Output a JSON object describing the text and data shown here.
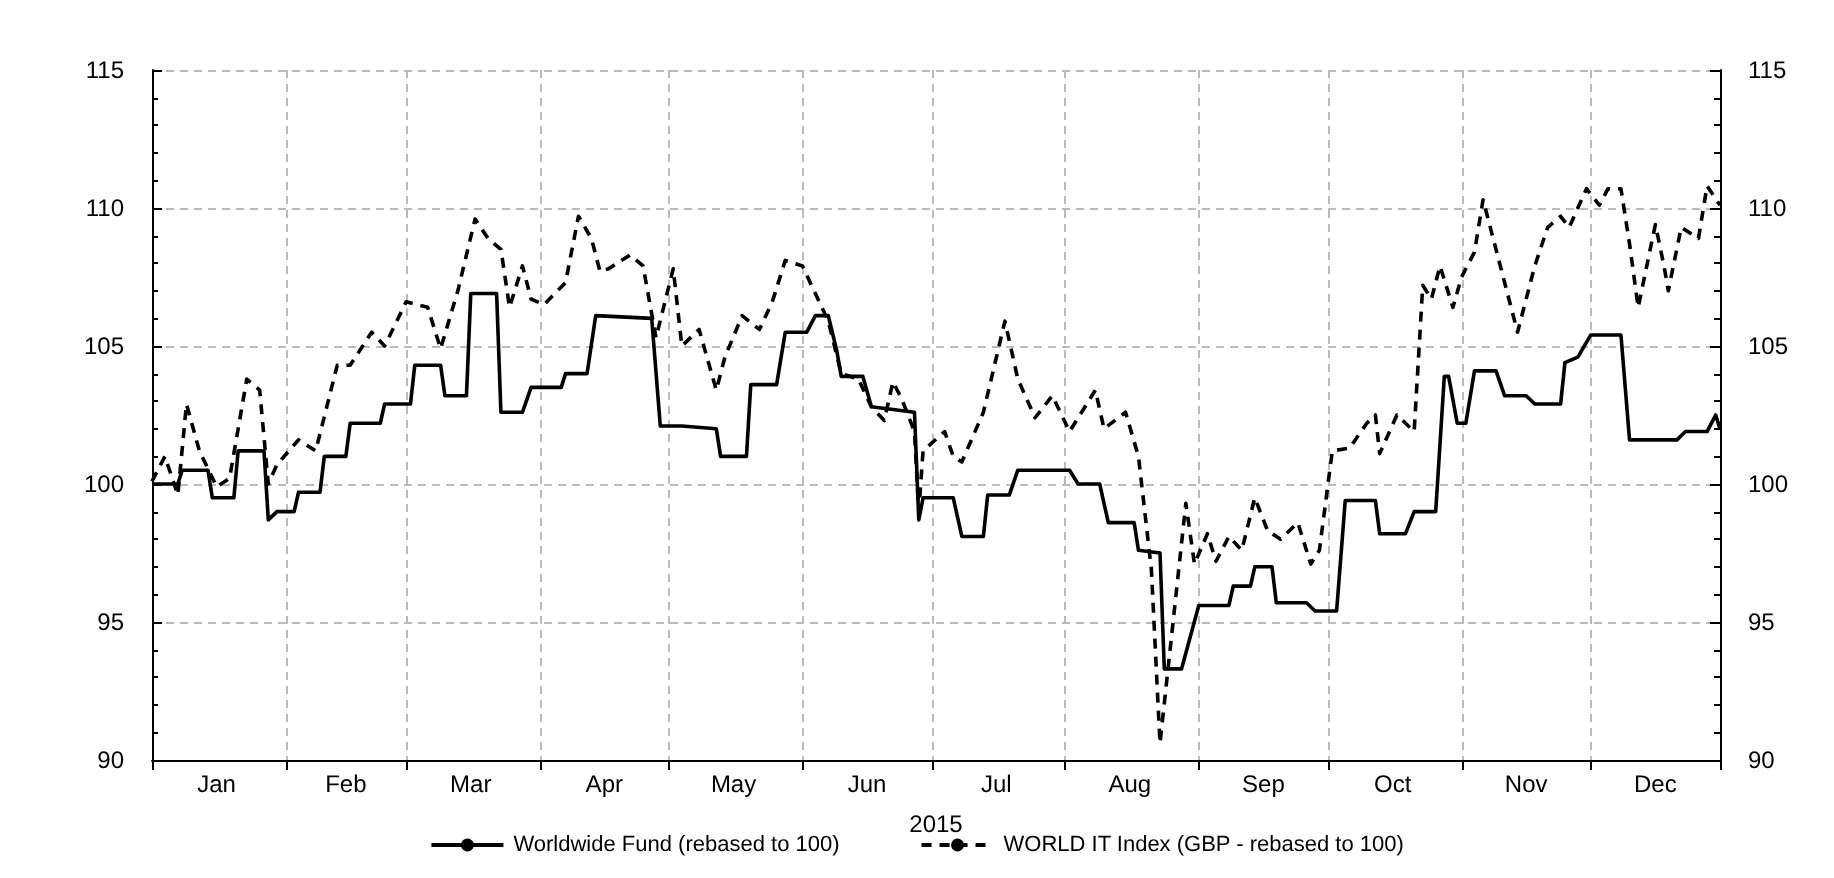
{
  "chart_data": {
    "type": "line",
    "xlabel": "2015",
    "xlim": [
      "2015-01-01",
      "2015-12-31"
    ],
    "xticks": [
      {
        "value": "2015-01-01",
        "label": null
      },
      {
        "value": "2015-01-16",
        "label": "Jan"
      },
      {
        "value": "2015-02-01",
        "label": null
      },
      {
        "value": "2015-02-15",
        "label": "Feb"
      },
      {
        "value": "2015-03-01",
        "label": null
      },
      {
        "value": "2015-03-16",
        "label": "Mar"
      },
      {
        "value": "2015-04-01",
        "label": null
      },
      {
        "value": "2015-04-16",
        "label": "Apr"
      },
      {
        "value": "2015-05-01",
        "label": null
      },
      {
        "value": "2015-05-16",
        "label": "May"
      },
      {
        "value": "2015-06-01",
        "label": null
      },
      {
        "value": "2015-06-16",
        "label": "Jun"
      },
      {
        "value": "2015-07-01",
        "label": null
      },
      {
        "value": "2015-07-16",
        "label": "Jul"
      },
      {
        "value": "2015-08-01",
        "label": null
      },
      {
        "value": "2015-08-16",
        "label": "Aug"
      },
      {
        "value": "2015-09-01",
        "label": null
      },
      {
        "value": "2015-09-16",
        "label": "Sep"
      },
      {
        "value": "2015-10-01",
        "label": null
      },
      {
        "value": "2015-10-16",
        "label": "Oct"
      },
      {
        "value": "2015-11-01",
        "label": null
      },
      {
        "value": "2015-11-16",
        "label": "Nov"
      },
      {
        "value": "2015-12-01",
        "label": null
      },
      {
        "value": "2015-12-16",
        "label": "Dec"
      },
      {
        "value": "2015-12-31",
        "label": null
      }
    ],
    "ylim": [
      90,
      115
    ],
    "yticks": [
      90,
      95,
      100,
      105,
      110,
      115
    ],
    "y2lim": [
      90,
      115
    ],
    "y2ticks": [
      90,
      95,
      100,
      105,
      110,
      115
    ],
    "grid": true,
    "legend": "bottom",
    "series": [
      {
        "name": "Worldwide Fund (rebased to 100)",
        "color": "#000000",
        "line_style": "solid",
        "x": [
          "2015-01-01",
          "2015-01-07",
          "2015-01-08",
          "2015-01-14",
          "2015-01-15",
          "2015-01-20",
          "2015-01-21",
          "2015-01-27",
          "2015-01-28",
          "2015-01-30",
          "2015-02-03",
          "2015-02-04",
          "2015-02-09",
          "2015-02-10",
          "2015-02-15",
          "2015-02-16",
          "2015-02-23",
          "2015-02-24",
          "2015-03-02",
          "2015-03-03",
          "2015-03-09",
          "2015-03-10",
          "2015-03-15",
          "2015-03-16",
          "2015-03-22",
          "2015-03-23",
          "2015-03-28",
          "2015-03-30",
          "2015-04-06",
          "2015-04-07",
          "2015-04-12",
          "2015-04-14",
          "2015-04-27",
          "2015-04-29",
          "2015-05-04",
          "2015-05-12",
          "2015-05-13",
          "2015-05-19",
          "2015-05-20",
          "2015-05-26",
          "2015-05-28",
          "2015-06-02",
          "2015-06-04",
          "2015-06-07",
          "2015-06-09",
          "2015-06-10",
          "2015-06-15",
          "2015-06-17",
          "2015-06-27",
          "2015-06-28",
          "2015-06-29",
          "2015-07-06",
          "2015-07-08",
          "2015-07-13",
          "2015-07-14",
          "2015-07-19",
          "2015-07-21",
          "2015-08-02",
          "2015-08-04",
          "2015-08-09",
          "2015-08-11",
          "2015-08-17",
          "2015-08-18",
          "2015-08-23",
          "2015-08-24",
          "2015-08-28",
          "2015-09-01",
          "2015-09-08",
          "2015-09-09",
          "2015-09-13",
          "2015-09-14",
          "2015-09-18",
          "2015-09-19",
          "2015-09-26",
          "2015-09-28",
          "2015-10-03",
          "2015-10-05",
          "2015-10-12",
          "2015-10-13",
          "2015-10-19",
          "2015-10-21",
          "2015-10-26",
          "2015-10-28",
          "2015-10-29",
          "2015-10-31",
          "2015-11-02",
          "2015-11-04",
          "2015-11-09",
          "2015-11-11",
          "2015-11-16",
          "2015-11-18",
          "2015-11-24",
          "2015-11-25",
          "2015-11-28",
          "2015-12-01",
          "2015-12-08",
          "2015-12-10",
          "2015-12-21",
          "2015-12-23",
          "2015-12-28",
          "2015-12-30",
          "2015-12-31"
        ],
        "values": [
          100.0,
          100.0,
          100.5,
          100.5,
          99.5,
          99.5,
          101.2,
          101.2,
          98.7,
          99.0,
          99.0,
          99.7,
          99.7,
          101.0,
          101.0,
          102.2,
          102.2,
          102.9,
          102.9,
          104.3,
          104.3,
          103.2,
          103.2,
          106.9,
          106.9,
          102.6,
          102.6,
          103.5,
          103.5,
          104.0,
          104.0,
          106.1,
          106.0,
          102.1,
          102.1,
          102.0,
          101.0,
          101.0,
          103.6,
          103.6,
          105.5,
          105.5,
          106.1,
          106.1,
          104.8,
          103.9,
          103.9,
          102.8,
          102.6,
          98.7,
          99.5,
          99.5,
          98.1,
          98.1,
          99.6,
          99.6,
          100.5,
          100.5,
          100.0,
          100.0,
          98.6,
          98.6,
          97.6,
          97.5,
          93.3,
          93.3,
          95.6,
          95.6,
          96.3,
          96.3,
          97.0,
          97.0,
          95.7,
          95.7,
          95.4,
          95.4,
          99.4,
          99.4,
          98.2,
          98.2,
          99.0,
          99.0,
          103.9,
          103.9,
          102.2,
          102.2,
          104.1,
          104.1,
          103.2,
          103.2,
          102.9,
          102.9,
          104.4,
          104.6,
          105.4,
          105.4,
          101.6,
          101.6,
          101.9,
          101.9,
          102.5,
          102.0
        ]
      },
      {
        "name": "WORLD IT Index (GBP - rebased to 100)",
        "color": "#000000",
        "line_style": "dashed",
        "x": [
          "2015-01-01",
          "2015-01-04",
          "2015-01-07",
          "2015-01-09",
          "2015-01-12",
          "2015-01-16",
          "2015-01-19",
          "2015-01-23",
          "2015-01-26",
          "2015-01-28",
          "2015-01-30",
          "2015-02-04",
          "2015-02-08",
          "2015-02-13",
          "2015-02-16",
          "2015-02-21",
          "2015-02-24",
          "2015-03-01",
          "2015-03-06",
          "2015-03-09",
          "2015-03-13",
          "2015-03-17",
          "2015-03-20",
          "2015-03-23",
          "2015-03-25",
          "2015-03-28",
          "2015-03-30",
          "2015-04-02",
          "2015-04-07",
          "2015-04-10",
          "2015-04-13",
          "2015-04-15",
          "2015-04-17",
          "2015-04-22",
          "2015-04-25",
          "2015-04-28",
          "2015-05-02",
          "2015-05-04",
          "2015-05-08",
          "2015-05-12",
          "2015-05-14",
          "2015-05-18",
          "2015-05-22",
          "2015-05-25",
          "2015-05-28",
          "2015-06-01",
          "2015-06-04",
          "2015-06-07",
          "2015-06-10",
          "2015-06-14",
          "2015-06-17",
          "2015-06-20",
          "2015-06-22",
          "2015-06-24",
          "2015-06-27",
          "2015-06-28",
          "2015-06-29",
          "2015-07-04",
          "2015-07-06",
          "2015-07-08",
          "2015-07-13",
          "2015-07-18",
          "2015-07-21",
          "2015-07-25",
          "2015-07-29",
          "2015-08-02",
          "2015-08-08",
          "2015-08-10",
          "2015-08-15",
          "2015-08-18",
          "2015-08-21",
          "2015-08-23",
          "2015-08-29",
          "2015-08-31",
          "2015-09-03",
          "2015-09-05",
          "2015-09-08",
          "2015-09-11",
          "2015-09-14",
          "2015-09-17",
          "2015-09-20",
          "2015-09-24",
          "2015-09-27",
          "2015-09-29",
          "2015-10-02",
          "2015-10-06",
          "2015-10-10",
          "2015-10-12",
          "2015-10-13",
          "2015-10-17",
          "2015-10-21",
          "2015-10-23",
          "2015-10-25",
          "2015-10-27",
          "2015-10-30",
          "2015-11-01",
          "2015-11-04",
          "2015-11-06",
          "2015-11-10",
          "2015-11-14",
          "2015-11-18",
          "2015-11-21",
          "2015-11-24",
          "2015-11-26",
          "2015-11-30",
          "2015-12-03",
          "2015-12-05",
          "2015-12-08",
          "2015-12-10",
          "2015-12-12",
          "2015-12-16",
          "2015-12-18",
          "2015-12-19",
          "2015-12-22",
          "2015-12-26",
          "2015-12-28",
          "2015-12-31"
        ],
        "values": [
          100.1,
          101.0,
          99.6,
          102.9,
          101.2,
          99.9,
          100.2,
          103.8,
          103.4,
          100.0,
          100.7,
          101.6,
          101.2,
          104.3,
          104.3,
          105.5,
          105.0,
          106.6,
          106.4,
          104.9,
          107.0,
          109.6,
          108.9,
          108.5,
          106.4,
          107.9,
          106.7,
          106.5,
          107.3,
          109.7,
          108.9,
          107.7,
          107.8,
          108.3,
          107.9,
          105.3,
          107.8,
          105.0,
          105.6,
          103.4,
          104.6,
          106.1,
          105.6,
          106.6,
          108.1,
          107.9,
          106.9,
          105.9,
          104.0,
          103.8,
          102.8,
          102.3,
          103.7,
          103.1,
          101.9,
          99.0,
          101.2,
          101.9,
          101.0,
          100.8,
          102.6,
          105.9,
          103.8,
          102.4,
          103.2,
          101.9,
          103.4,
          102.0,
          102.6,
          101.0,
          96.9,
          90.6,
          99.3,
          97.1,
          98.2,
          97.2,
          98.1,
          97.6,
          99.5,
          98.3,
          98.0,
          98.6,
          97.1,
          97.6,
          101.2,
          101.3,
          102.2,
          102.5,
          101.1,
          102.5,
          101.9,
          107.2,
          106.7,
          107.9,
          106.4,
          107.5,
          108.4,
          110.3,
          107.9,
          105.5,
          107.9,
          109.3,
          109.7,
          109.3,
          110.7,
          110.1,
          110.7,
          110.7,
          108.7,
          106.4,
          109.4,
          107.9,
          107.0,
          109.3,
          108.9,
          110.8,
          110.1
        ]
      }
    ]
  }
}
